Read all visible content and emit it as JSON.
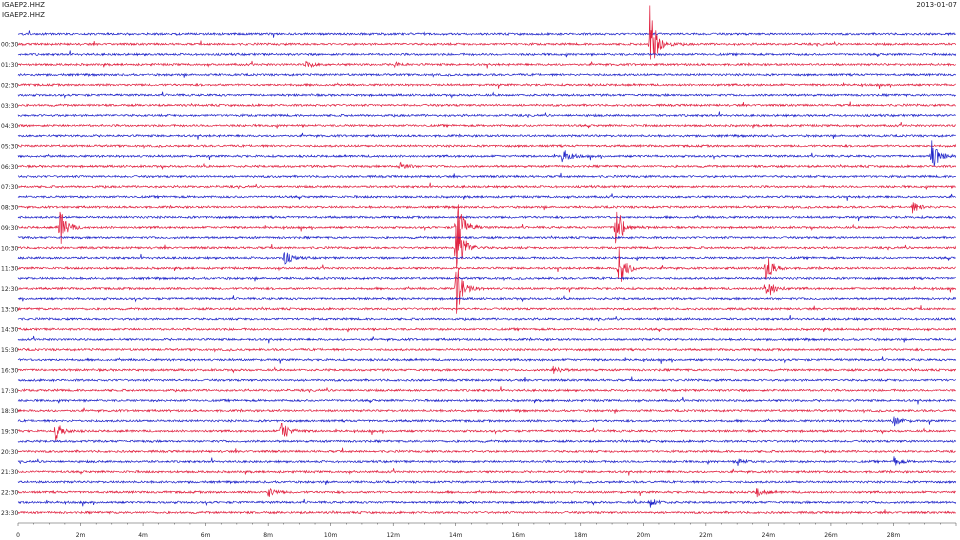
{
  "header": {
    "station_line_1": "IGAEP2.HHZ",
    "station_line_2": "IGAEP2.HHZ",
    "date": "2013-01-07"
  },
  "chart_data": {
    "type": "line",
    "description_type": "helicorder",
    "rows": 48,
    "row_minutes": 30,
    "colors": [
      "#1d22c8",
      "#e0203f"
    ],
    "hour_labels": [
      "00:30",
      "01:30",
      "02:30",
      "03:30",
      "04:30",
      "05:30",
      "06:30",
      "07:30",
      "08:30",
      "09:30",
      "10:30",
      "11:30",
      "12:30",
      "13:30",
      "14:30",
      "15:30",
      "16:30",
      "17:30",
      "18:30",
      "19:30",
      "20:30",
      "21:30",
      "22:30",
      "23:30"
    ],
    "x_ticks": [
      "0",
      "2m",
      "4m",
      "6m",
      "8m",
      "10m",
      "12m",
      "14m",
      "16m",
      "18m",
      "20m",
      "22m",
      "24m",
      "26m",
      "28m"
    ],
    "xlim": [
      0,
      30
    ],
    "events": [
      {
        "row": 1,
        "minute": 20.2,
        "amp": 40
      },
      {
        "row": 3,
        "minute": 9.2,
        "amp": 4
      },
      {
        "row": 3,
        "minute": 12.0,
        "amp": 3
      },
      {
        "row": 12,
        "minute": 17.4,
        "amp": 9
      },
      {
        "row": 12,
        "minute": 29.2,
        "amp": 18
      },
      {
        "row": 13,
        "minute": 12.2,
        "amp": 5
      },
      {
        "row": 17,
        "minute": 28.6,
        "amp": 6
      },
      {
        "row": 19,
        "minute": 1.3,
        "amp": 24
      },
      {
        "row": 19,
        "minute": 14.0,
        "amp": 36
      },
      {
        "row": 19,
        "minute": 19.1,
        "amp": 28
      },
      {
        "row": 21,
        "minute": 14.0,
        "amp": 38
      },
      {
        "row": 22,
        "minute": 8.5,
        "amp": 8
      },
      {
        "row": 23,
        "minute": 19.2,
        "amp": 24
      },
      {
        "row": 23,
        "minute": 23.9,
        "amp": 16
      },
      {
        "row": 25,
        "minute": 14.0,
        "amp": 30
      },
      {
        "row": 25,
        "minute": 23.9,
        "amp": 14
      },
      {
        "row": 33,
        "minute": 17.1,
        "amp": 5
      },
      {
        "row": 39,
        "minute": 1.2,
        "amp": 10
      },
      {
        "row": 39,
        "minute": 8.4,
        "amp": 13
      },
      {
        "row": 38,
        "minute": 28.0,
        "amp": 6
      },
      {
        "row": 42,
        "minute": 23.0,
        "amp": 5
      },
      {
        "row": 42,
        "minute": 28.0,
        "amp": 5
      },
      {
        "row": 45,
        "minute": 8.0,
        "amp": 5
      },
      {
        "row": 45,
        "minute": 23.6,
        "amp": 6
      },
      {
        "row": 46,
        "minute": 20.2,
        "amp": 6
      }
    ]
  }
}
